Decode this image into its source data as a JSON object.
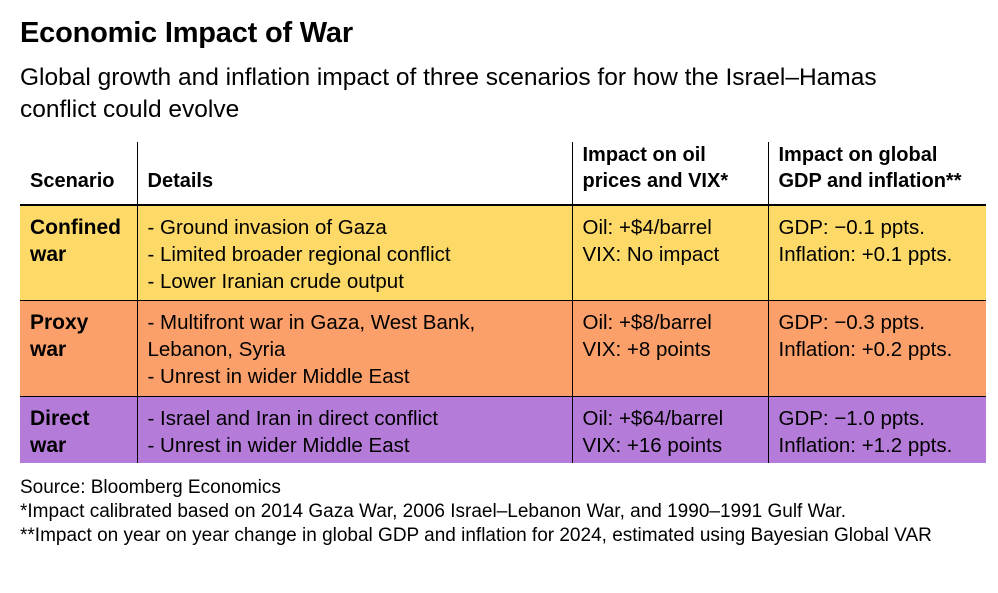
{
  "title": "Economic Impact of War",
  "subtitle": "Global growth and inflation impact of three scenarios for how the Israel–Hamas conflict could evolve",
  "table": {
    "headers": {
      "scenario": "Scenario",
      "details": "Details",
      "oil_vix": "Impact on oil prices and VIX*",
      "gdp_inflation": "Impact on global GDP and inflation**"
    },
    "rows": [
      {
        "scenario": "Confined war",
        "color": "#FDD967",
        "details": [
          "- Ground invasion of Gaza",
          "- Limited broader regional conflict",
          "- Lower Iranian crude output"
        ],
        "oil_vix": [
          "Oil: +$4/barrel",
          "VIX: No impact"
        ],
        "gdp_inflation": [
          "GDP: −0.1 ppts.",
          "Inflation: +0.1 ppts."
        ]
      },
      {
        "scenario": "Proxy war",
        "color": "#FBA06A",
        "details": [
          "- Multifront war in Gaza, West Bank,",
          "Lebanon, Syria",
          "- Unrest in wider Middle East"
        ],
        "oil_vix": [
          "Oil: +$8/barrel",
          "VIX: +8 points"
        ],
        "gdp_inflation": [
          "GDP: −0.3 ppts.",
          "Inflation: +0.2 ppts."
        ]
      },
      {
        "scenario": "Direct war",
        "color": "#B57BD8",
        "details": [
          "- Israel and Iran in direct conflict",
          "- Unrest in wider Middle East"
        ],
        "oil_vix": [
          "Oil: +$64/barrel",
          "VIX: +16 points"
        ],
        "gdp_inflation": [
          "GDP: −1.0 ppts.",
          "Inflation: +1.2 ppts."
        ]
      }
    ]
  },
  "notes": {
    "source": "Source: Bloomberg Economics",
    "footnote1": "*Impact calibrated based on 2014 Gaza War, 2006 Israel–Lebanon War, and 1990–1991 Gulf War.",
    "footnote2": "**Impact on year on year change in global GDP and inflation for 2024, estimated using Bayesian Global VAR"
  }
}
